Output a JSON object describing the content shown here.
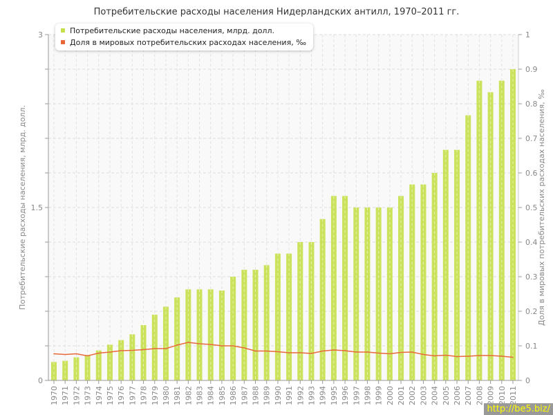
{
  "chart_data": {
    "type": "bar+line",
    "title": "Потребительские расходы населения Нидерландских антилл, 1970–2011 гг.",
    "ylabel": "Потребительские расходы населения, млрд. долл.",
    "y2label": "Доля в мировых потребительских расходах населения, ‰",
    "ylim": [
      0,
      3
    ],
    "y2lim": [
      0,
      1
    ],
    "yticks": [
      "0",
      "1.5",
      "3"
    ],
    "y2ticks": [
      "0",
      "0.1",
      "0.2",
      "0.3",
      "0.4",
      "0.5",
      "0.6",
      "0.7",
      "0.8",
      "0.9",
      "1"
    ],
    "grid": true,
    "legend": "top-left",
    "categories": [
      "1970",
      "1971",
      "1972",
      "1973",
      "1974",
      "1975",
      "1976",
      "1977",
      "1978",
      "1979",
      "1980",
      "1981",
      "1982",
      "1983",
      "1984",
      "1985",
      "1986",
      "1987",
      "1988",
      "1989",
      "1990",
      "1991",
      "1992",
      "1993",
      "1994",
      "1995",
      "1996",
      "1997",
      "1998",
      "1999",
      "2000",
      "2001",
      "2002",
      "2003",
      "2004",
      "2005",
      "2006",
      "2007",
      "2008",
      "2009",
      "2010",
      "2011"
    ],
    "series": [
      {
        "name": "Потребительские расходы населения, млрд. долл.",
        "type": "bar",
        "axis": "left",
        "color": "#c5e04a",
        "values": [
          0.16,
          0.17,
          0.2,
          0.22,
          0.26,
          0.31,
          0.35,
          0.4,
          0.48,
          0.57,
          0.64,
          0.72,
          0.79,
          0.79,
          0.79,
          0.78,
          0.9,
          0.96,
          0.96,
          1.0,
          1.1,
          1.1,
          1.2,
          1.2,
          1.4,
          1.6,
          1.6,
          1.5,
          1.5,
          1.5,
          1.5,
          1.6,
          1.7,
          1.7,
          1.8,
          2.0,
          2.0,
          2.3,
          2.6,
          2.5,
          2.6,
          2.7
        ]
      },
      {
        "name": "Доля в мировых потребительских расходах населения, ‰",
        "type": "line",
        "axis": "right",
        "color": "#e8683a",
        "values": [
          0.077,
          0.075,
          0.077,
          0.071,
          0.079,
          0.082,
          0.086,
          0.087,
          0.089,
          0.092,
          0.092,
          0.102,
          0.11,
          0.106,
          0.104,
          0.1,
          0.1,
          0.094,
          0.085,
          0.085,
          0.083,
          0.08,
          0.08,
          0.078,
          0.085,
          0.088,
          0.086,
          0.082,
          0.082,
          0.079,
          0.077,
          0.081,
          0.082,
          0.075,
          0.071,
          0.073,
          0.069,
          0.07,
          0.072,
          0.072,
          0.07,
          0.067
        ]
      }
    ]
  },
  "watermark": "http://be5.biz/"
}
